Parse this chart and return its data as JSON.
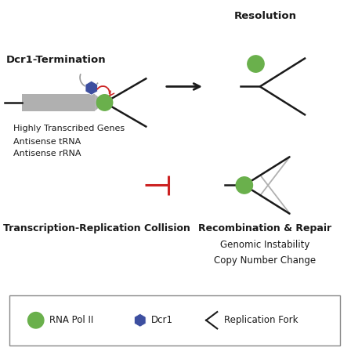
{
  "bg_color": "#ffffff",
  "green_color": "#6ab04c",
  "blue_hex_color": "#3d4fa0",
  "red_color": "#cc2222",
  "dark_color": "#1a1a1a",
  "gray_arm_color": "#b0b0b0",
  "gene_color": "#b0b0b0",
  "labels": {
    "dcr1_term": "Dcr1-Termination",
    "resolution": "Resolution",
    "highly_transcribed": "Highly Transcribed Genes",
    "antisense_trna": "Antisense tRNA",
    "antisense_rrna": "Antisense rRNA",
    "trc": "Transcription-Replication Collision",
    "recomb": "Recombination & Repair",
    "genomic": "Genomic Instability",
    "copy": "Copy Number Change",
    "rna_pol": "RNA Pol II",
    "dcr1": "Dcr1",
    "rep_fork": "Replication Fork"
  }
}
